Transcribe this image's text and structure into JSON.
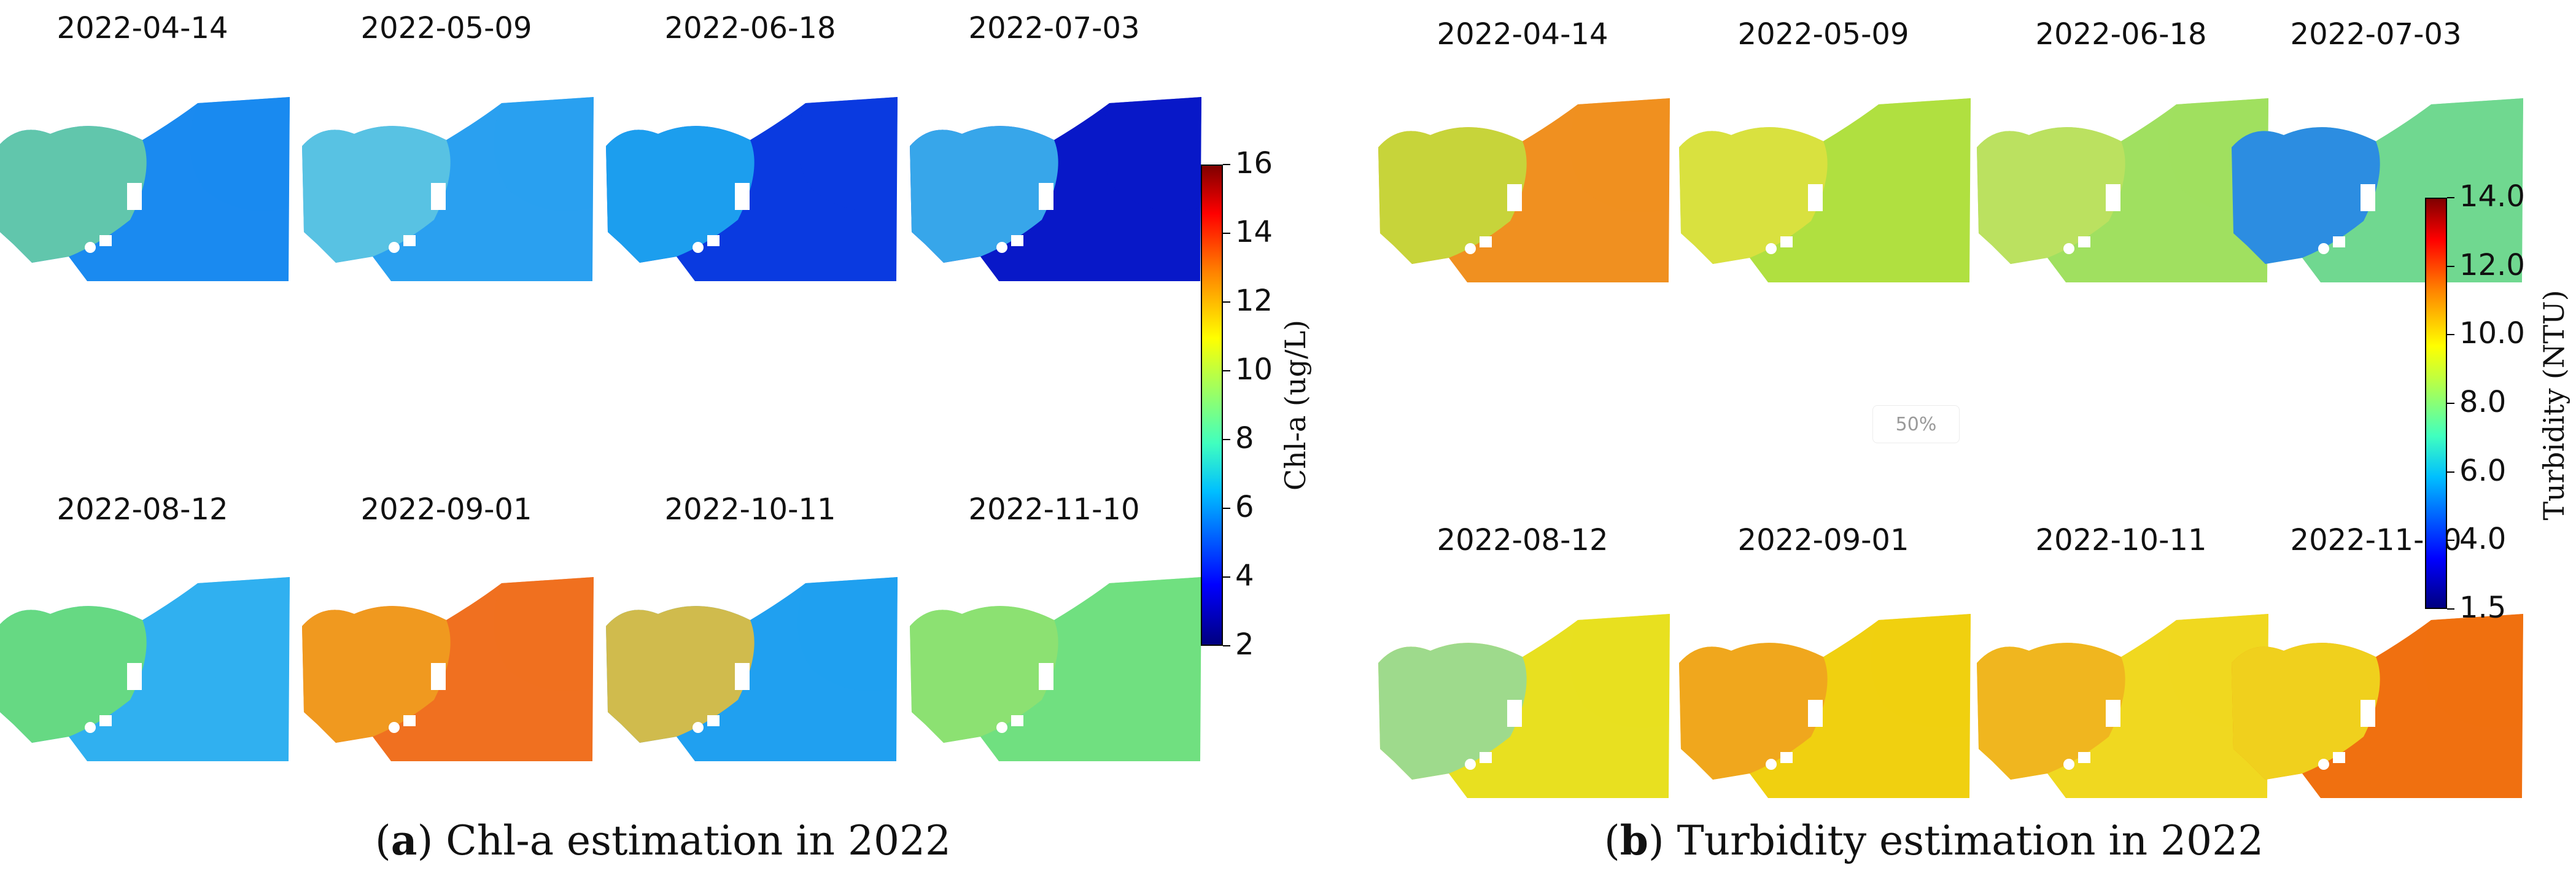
{
  "panel_a": {
    "dates": [
      "2022-04-14",
      "2022-05-09",
      "2022-06-18",
      "2022-07-03",
      "2022-08-12",
      "2022-09-01",
      "2022-10-11",
      "2022-11-10"
    ],
    "colorbar": {
      "label": "Chl-a (ug/L)",
      "ticks": [
        "16",
        "14",
        "12",
        "10",
        "8",
        "6",
        "4",
        "2"
      ],
      "range": [
        2,
        16
      ],
      "colormap": "jet"
    },
    "caption_letter": "a",
    "caption_text": ") Chl-a estimation in 2022",
    "map_colors": [
      "#1a8af0",
      "#2aa0f0",
      "#0a3ae0",
      "#0818c8",
      "#30b0f0",
      "#f07020",
      "#20a0f0",
      "#70e080"
    ],
    "map_accent": [
      "#6ed0a0",
      "#60c8e0",
      "#20b0f0",
      "#40c0f0",
      "#70e070",
      "#f0a020",
      "#f0c030",
      "#90e070"
    ]
  },
  "panel_b": {
    "dates": [
      "2022-04-14",
      "2022-05-09",
      "2022-06-18",
      "2022-07-03",
      "2022-08-12",
      "2022-09-01",
      "2022-10-11",
      "2022-11-10"
    ],
    "colorbar": {
      "label": "Turbidity (NTU)",
      "ticks": [
        "14.0",
        "12.0",
        "10.0",
        "8.0",
        "6.0",
        "4.0",
        "1.5"
      ],
      "range": [
        1.5,
        14.0
      ],
      "colormap": "jet"
    },
    "caption_letter": "b",
    "caption_text": ") Turbidity estimation in 2022",
    "map_colors": [
      "#f09020",
      "#b0e040",
      "#a0e060",
      "#70d890",
      "#e8e020",
      "#f0d010",
      "#f0d820",
      "#f07010"
    ],
    "map_accent": [
      "#c0e040",
      "#e0e040",
      "#c0e060",
      "#2080f0",
      "#90d8a0",
      "#f0a020",
      "#f0b020",
      "#f0e020"
    ]
  },
  "zoom_badge": "50%"
}
